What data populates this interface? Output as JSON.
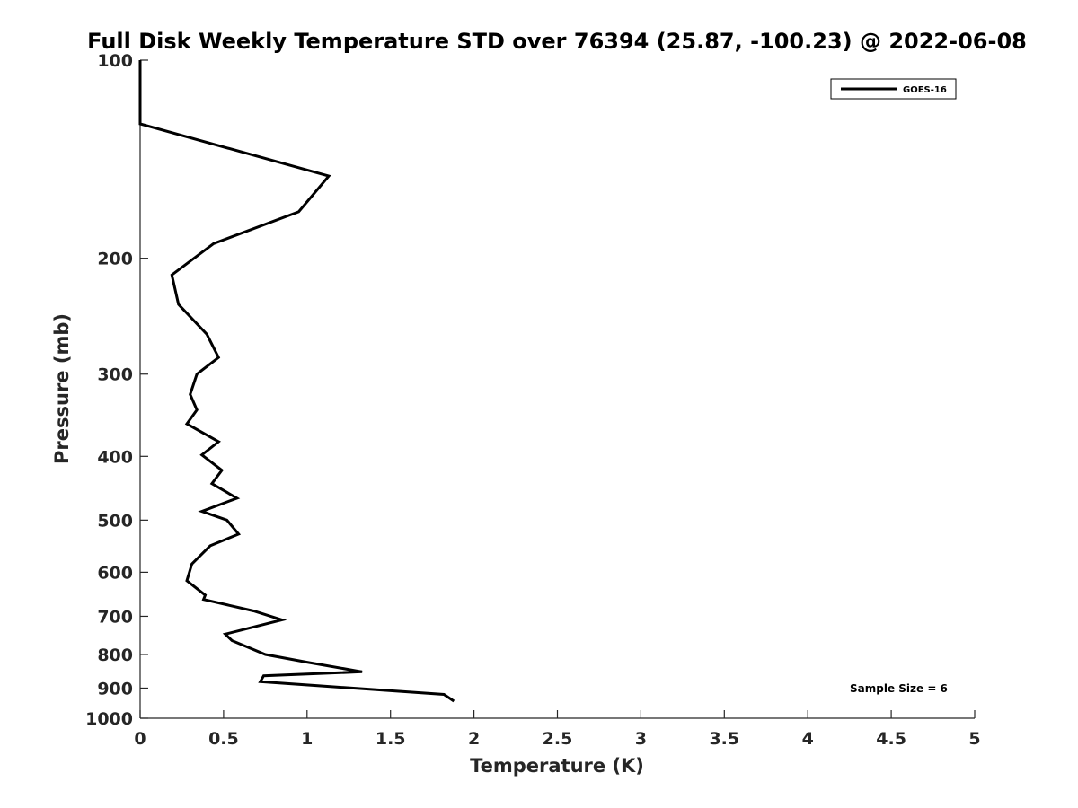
{
  "chart_data": {
    "type": "line",
    "title": "Full Disk Weekly Temperature STD over 76394 (25.87, -100.23) @ 2022-06-08",
    "xlabel": "Temperature (K)",
    "ylabel": "Pressure (mb)",
    "xlim": [
      0,
      5
    ],
    "ylim": [
      100,
      1000
    ],
    "y_scale": "log",
    "y_reversed": true,
    "x_ticks": [
      "0",
      "0.5",
      "1",
      "1.5",
      "2",
      "2.5",
      "3",
      "3.5",
      "4",
      "4.5",
      "5"
    ],
    "y_ticks": [
      "100",
      "200",
      "300",
      "400",
      "500",
      "600",
      "700",
      "800",
      "900",
      "1000"
    ],
    "grid": false,
    "legend_position": "top-right",
    "series": [
      {
        "name": "GOES-16",
        "color": "#000000",
        "x": [
          0.0,
          0.0,
          1.13,
          0.95,
          0.44,
          0.19,
          0.23,
          0.4,
          0.47,
          0.34,
          0.3,
          0.34,
          0.28,
          0.47,
          0.37,
          0.49,
          0.43,
          0.58,
          0.37,
          0.52,
          0.59,
          0.42,
          0.31,
          0.28,
          0.39,
          0.38,
          0.68,
          0.85,
          0.51,
          0.55,
          0.75,
          1.0,
          1.33,
          0.74,
          0.72,
          1.82,
          1.88
        ],
        "y": [
          100,
          125,
          150,
          170,
          190,
          212,
          235,
          261,
          283,
          300,
          322,
          340,
          357,
          380,
          398,
          420,
          440,
          463,
          485,
          500,
          525,
          547,
          583,
          618,
          650,
          660,
          687,
          709,
          745,
          762,
          800,
          822,
          850,
          862,
          880,
          920,
          942
        ]
      }
    ],
    "annotations": [
      "Sample Size = 6"
    ]
  }
}
